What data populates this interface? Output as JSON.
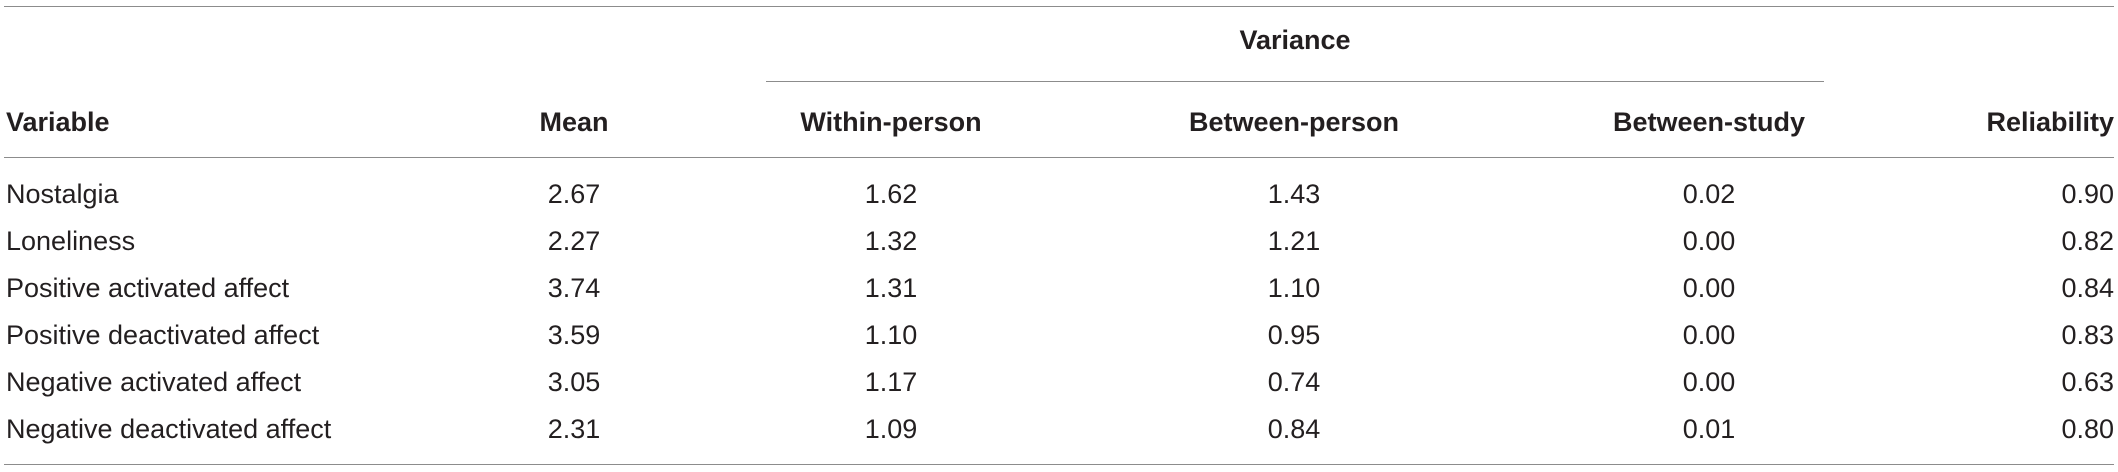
{
  "table": {
    "group_header": "Variance",
    "columns": {
      "variable": "Variable",
      "mean": "Mean",
      "within": "Within-person",
      "between_person": "Between-person",
      "between_study": "Between-study",
      "reliability": "Reliability"
    },
    "rows": [
      {
        "variable": "Nostalgia",
        "mean": "2.67",
        "within": "1.62",
        "between_person": "1.43",
        "between_study": "0.02",
        "reliability": "0.90"
      },
      {
        "variable": "Loneliness",
        "mean": "2.27",
        "within": "1.32",
        "between_person": "1.21",
        "between_study": "0.00",
        "reliability": "0.82"
      },
      {
        "variable": "Positive activated affect",
        "mean": "3.74",
        "within": "1.31",
        "between_person": "1.10",
        "between_study": "0.00",
        "reliability": "0.84"
      },
      {
        "variable": "Positive deactivated affect",
        "mean": "3.59",
        "within": "1.10",
        "between_person": "0.95",
        "between_study": "0.00",
        "reliability": "0.83"
      },
      {
        "variable": "Negative activated affect",
        "mean": "3.05",
        "within": "1.17",
        "between_person": "0.74",
        "between_study": "0.00",
        "reliability": "0.63"
      },
      {
        "variable": "Negative deactivated affect",
        "mean": "2.31",
        "within": "1.09",
        "between_person": "0.84",
        "between_study": "0.01",
        "reliability": "0.80"
      }
    ]
  }
}
